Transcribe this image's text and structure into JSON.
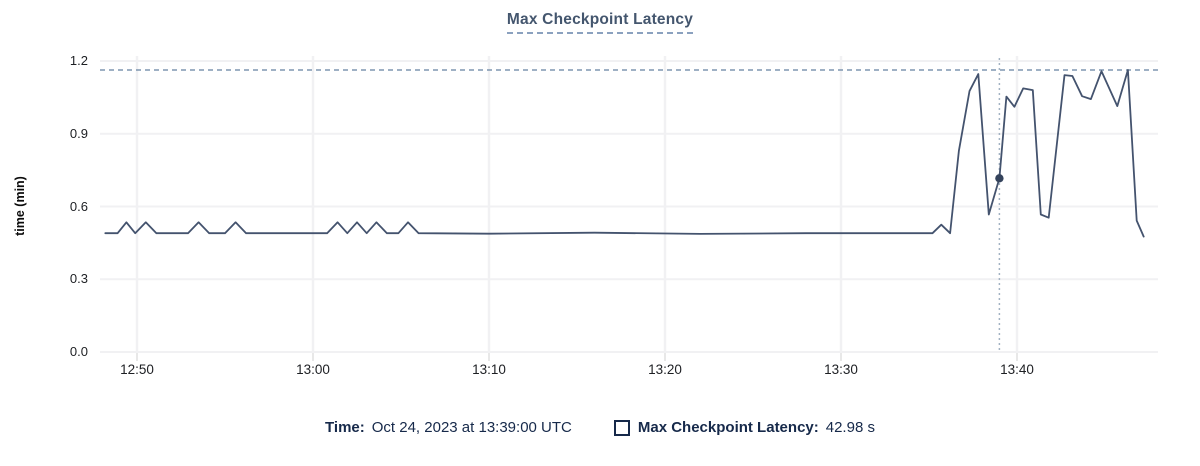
{
  "title": "Max Checkpoint Latency",
  "colors": {
    "line": "#44536e",
    "dot": "#34435c",
    "title_text": "#44566e",
    "title_underline": "#8ba1bf",
    "legend_text": "#16294a",
    "tick_text": "#1d1f23",
    "gridline": "#f1f1f3",
    "axis_tick_mark": "#e0e0e0",
    "max_line": "#7e96b0",
    "cursor_line": "#a3b2c2"
  },
  "legend": {
    "time_label": "Time:",
    "time_value": "Oct 24, 2023 at 13:39:00 UTC",
    "series_label": "Max Checkpoint Latency:",
    "series_value": "42.98 s"
  },
  "chart_data": {
    "type": "line",
    "title": "Max Checkpoint Latency",
    "xlabel": "",
    "ylabel": "time (min)",
    "x_unit": "minutes after 12:00 UTC",
    "y_unit": "minutes",
    "xlim": [
      47.9,
      108.0
    ],
    "ylim": [
      0,
      1.2
    ],
    "grid": true,
    "legend_position": "bottom",
    "x_ticks": [
      {
        "t": 50,
        "label": "12:50"
      },
      {
        "t": 60,
        "label": "13:00"
      },
      {
        "t": 70,
        "label": "13:10"
      },
      {
        "t": 80,
        "label": "13:20"
      },
      {
        "t": 90,
        "label": "13:30"
      },
      {
        "t": 100,
        "label": "13:40"
      }
    ],
    "y_ticks": [
      {
        "v": 0.0,
        "label": "0.0"
      },
      {
        "v": 0.3,
        "label": "0.3"
      },
      {
        "v": 0.6,
        "label": "0.6"
      },
      {
        "v": 0.9,
        "label": "0.9"
      },
      {
        "v": 1.2,
        "label": "1.2"
      }
    ],
    "x": [
      48.2,
      48.9,
      49.4,
      49.9,
      50.5,
      51.1,
      52.9,
      53.5,
      54.1,
      55.0,
      55.6,
      56.2,
      60.8,
      61.4,
      61.95,
      62.5,
      63.05,
      63.6,
      64.2,
      64.85,
      65.4,
      66.0,
      70.0,
      76.0,
      82.0,
      88.0,
      95.2,
      95.7,
      96.2,
      96.7,
      97.3,
      97.8,
      98.4,
      99.0,
      99.4,
      99.85,
      100.35,
      100.9,
      101.35,
      101.8,
      102.7,
      103.15,
      103.7,
      104.2,
      104.8,
      105.7,
      106.3,
      106.8,
      107.2
    ],
    "series": [
      {
        "name": "Max Checkpoint Latency",
        "values": [
          0.49,
          0.49,
          0.535,
          0.49,
          0.535,
          0.49,
          0.49,
          0.535,
          0.49,
          0.49,
          0.535,
          0.49,
          0.49,
          0.535,
          0.49,
          0.535,
          0.49,
          0.535,
          0.49,
          0.49,
          0.535,
          0.49,
          0.488,
          0.492,
          0.487,
          0.49,
          0.49,
          0.525,
          0.49,
          0.83,
          1.076,
          1.146,
          0.567,
          0.7163,
          1.053,
          1.011,
          1.087,
          1.08,
          0.567,
          0.554,
          1.142,
          1.138,
          1.055,
          1.043,
          1.158,
          1.014,
          1.163,
          0.542,
          0.476
        ]
      }
    ],
    "max_reference_line": 1.163,
    "highlight": {
      "t": 99.0,
      "v": 0.7163,
      "time_label": "Oct 24, 2023 at 13:39:00 UTC",
      "value_label": "42.98 s"
    }
  }
}
